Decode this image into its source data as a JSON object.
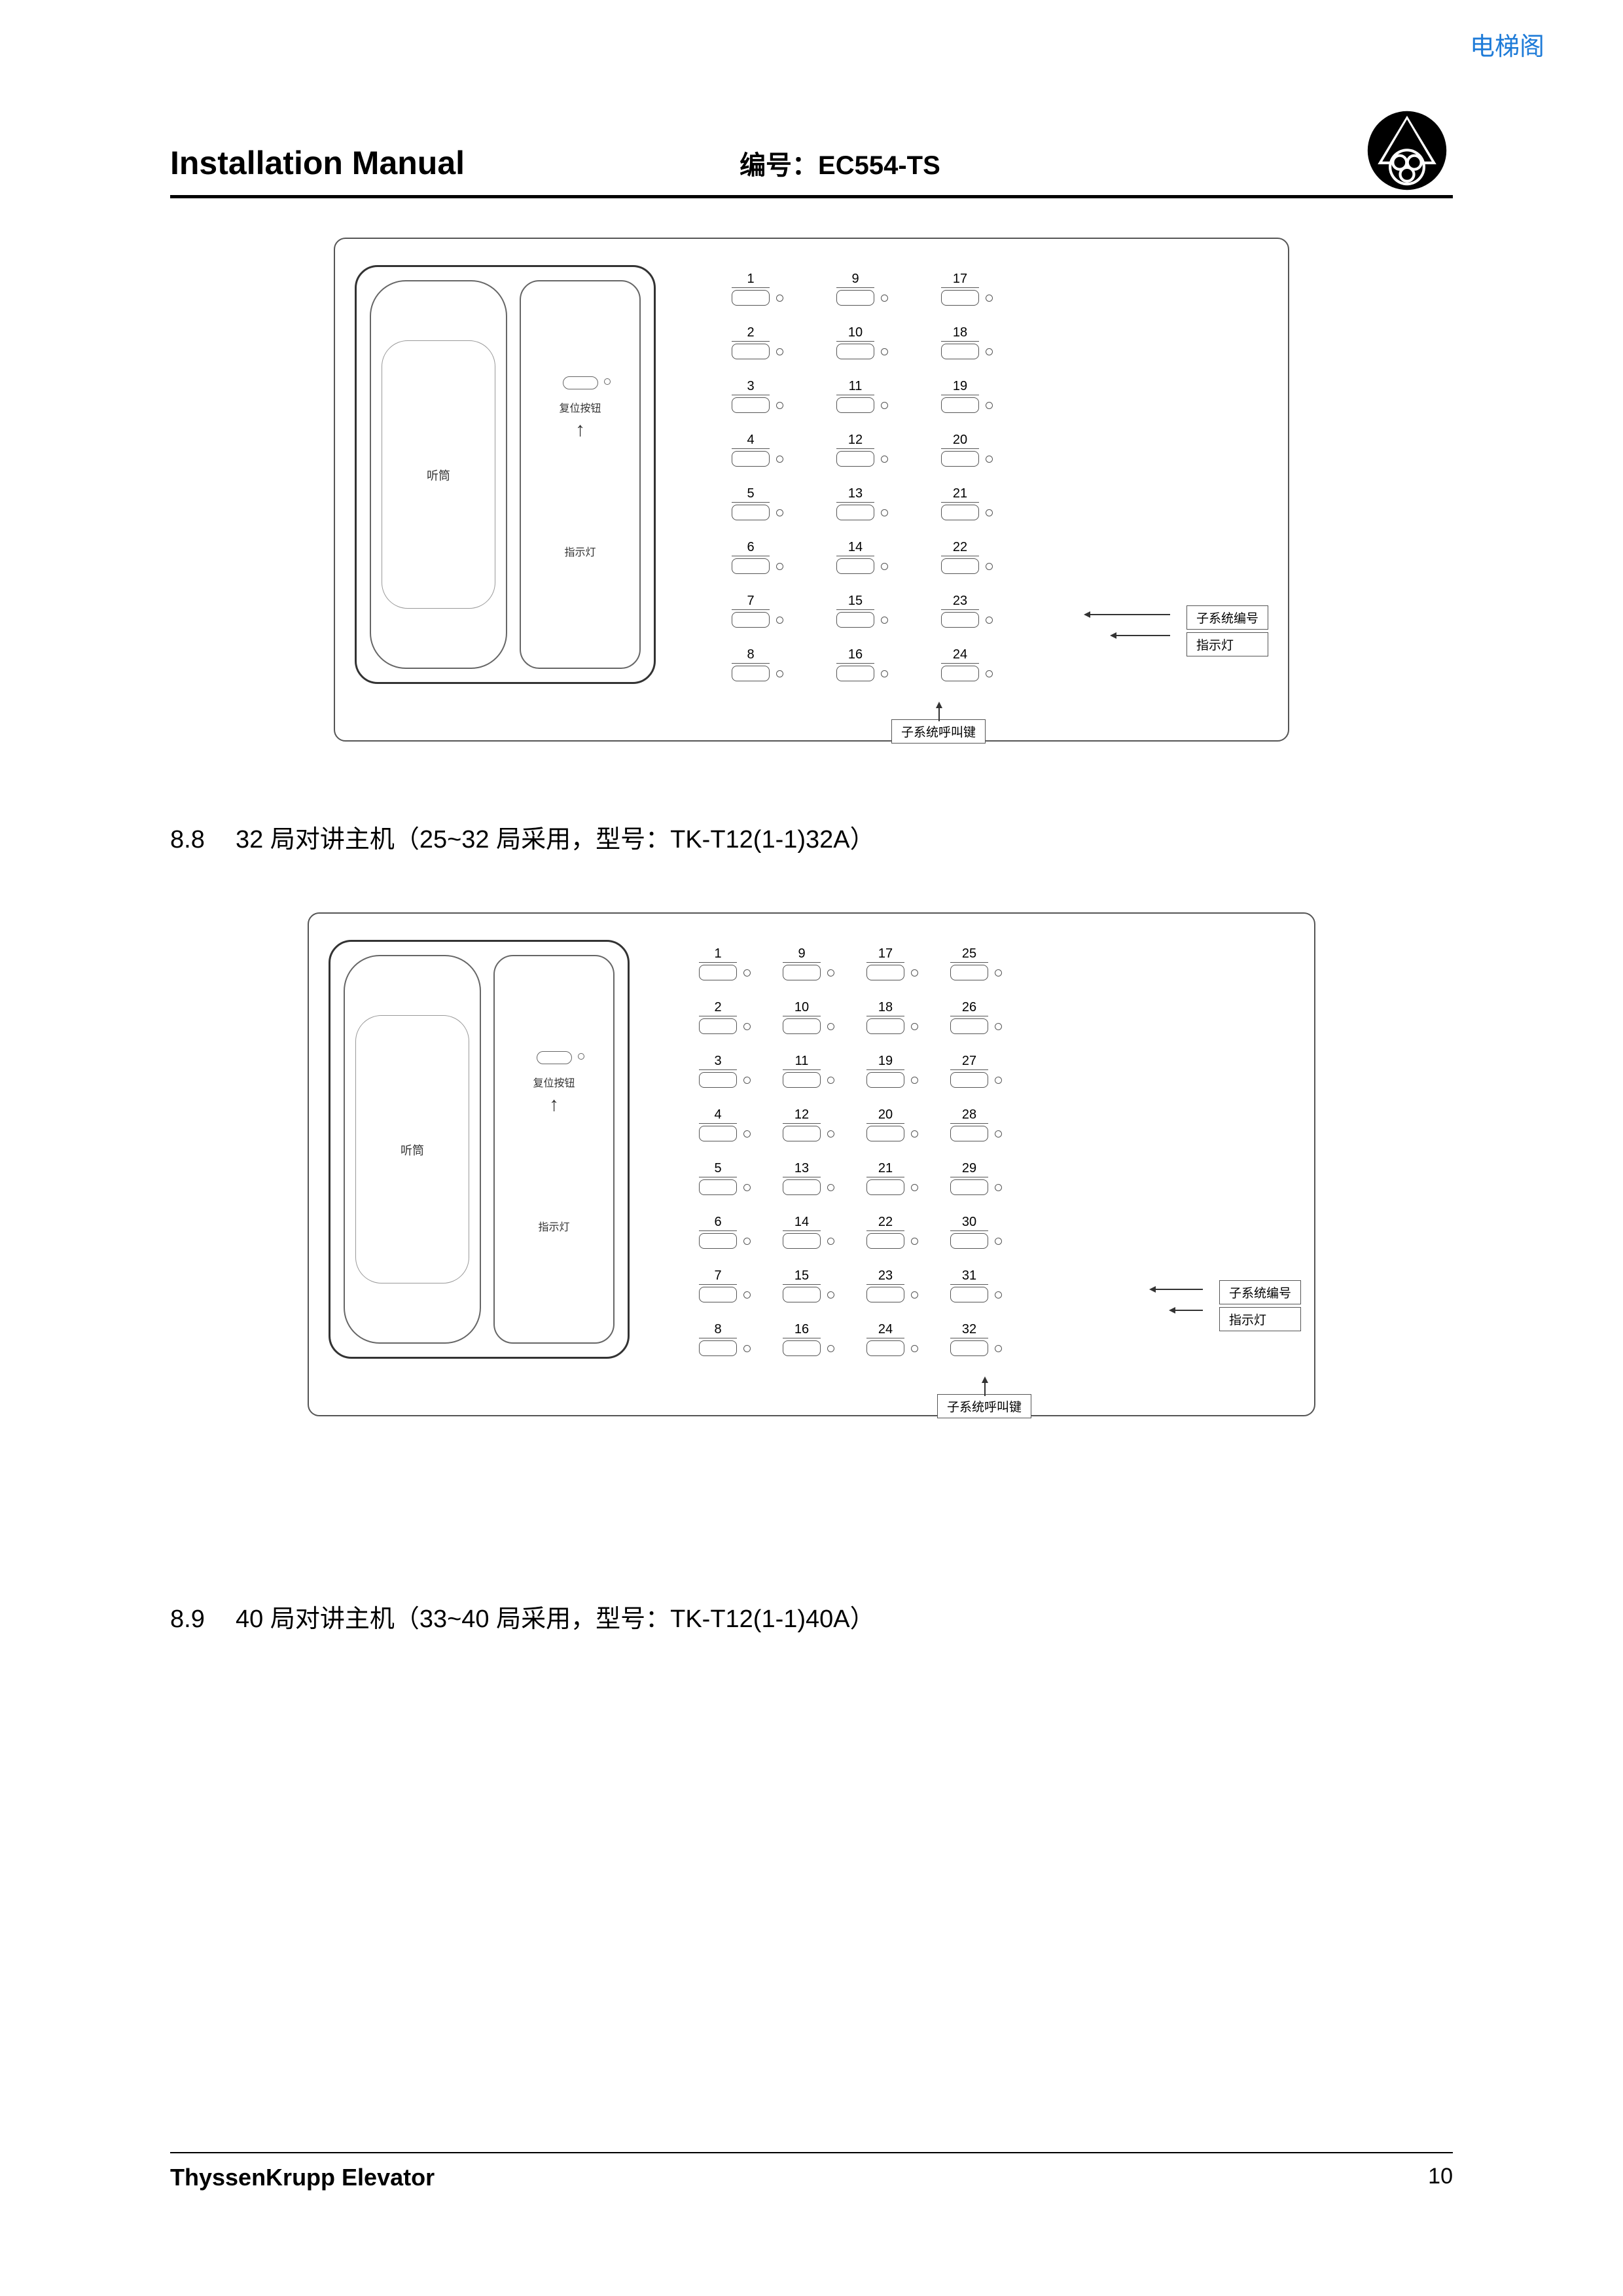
{
  "watermark": "电梯阁",
  "header": {
    "title": "Installation Manual",
    "code_label": "编号：EC554-TS"
  },
  "handset": {
    "left_label": "听筒",
    "right_label_top": "复位按钮",
    "right_label_bottom": "指示灯"
  },
  "callouts": {
    "system_number": "子系统编号",
    "indicator": "指示灯",
    "call_button": "子系统呼叫键"
  },
  "diagram_24": {
    "columns": [
      [
        "1",
        "2",
        "3",
        "4",
        "5",
        "6",
        "7",
        "8"
      ],
      [
        "9",
        "10",
        "11",
        "12",
        "13",
        "14",
        "15",
        "16"
      ],
      [
        "17",
        "18",
        "19",
        "20",
        "21",
        "22",
        "23",
        "24"
      ]
    ]
  },
  "diagram_32": {
    "columns": [
      [
        "1",
        "2",
        "3",
        "4",
        "5",
        "6",
        "7",
        "8"
      ],
      [
        "9",
        "10",
        "11",
        "12",
        "13",
        "14",
        "15",
        "16"
      ],
      [
        "17",
        "18",
        "19",
        "20",
        "21",
        "22",
        "23",
        "24"
      ],
      [
        "25",
        "26",
        "27",
        "28",
        "29",
        "30",
        "31",
        "32"
      ]
    ]
  },
  "sections": {
    "s88": {
      "num": "8.8",
      "text": "32 局对讲主机（25~32 局采用，型号：TK-T12(1-1)32A）"
    },
    "s89": {
      "num": "8.9",
      "text": "40 局对讲主机（33~40 局采用，型号：TK-T12(1-1)40A）"
    }
  },
  "footer": {
    "brand": "ThyssenKrupp  Elevator",
    "page": "10"
  },
  "colors": {
    "text": "#000000",
    "watermark": "#1e7bd8",
    "line": "#555555"
  }
}
